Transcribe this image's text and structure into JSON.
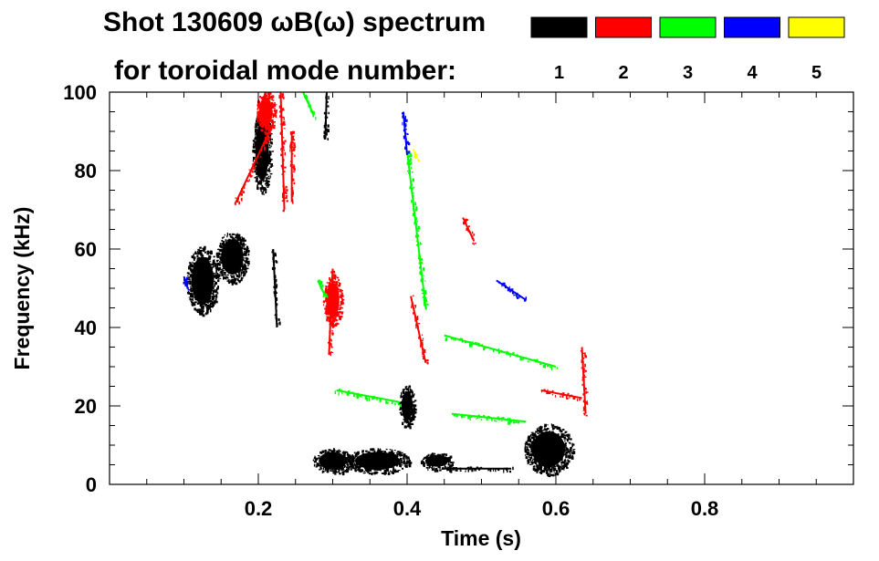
{
  "chart_data": {
    "type": "spectrogram",
    "title_line1": "Shot 130609 ωB(ω) spectrum",
    "title_line2": "for toroidal mode number:",
    "xlabel": "Time (s)",
    "ylabel": "Frequency (kHz)",
    "xlim": [
      0.0,
      1.0
    ],
    "ylim": [
      0,
      100
    ],
    "x_ticks": [
      "0.2",
      "0.4",
      "0.6",
      "0.8"
    ],
    "y_ticks": [
      "0",
      "20",
      "40",
      "60",
      "80",
      "100"
    ],
    "legend": [
      {
        "label": "1",
        "color": "#000000"
      },
      {
        "label": "2",
        "color": "#ff0000"
      },
      {
        "label": "3",
        "color": "#00ff00"
      },
      {
        "label": "4",
        "color": "#0000ff"
      },
      {
        "label": "5",
        "color": "#ffff00"
      }
    ],
    "features": [
      {
        "mode": "1",
        "kind": "blob",
        "t": 0.125,
        "f": 52,
        "dt": 0.02,
        "df": 8
      },
      {
        "mode": "1",
        "kind": "blob",
        "t": 0.165,
        "f": 58,
        "dt": 0.02,
        "df": 6
      },
      {
        "mode": "1",
        "kind": "blob",
        "t": 0.205,
        "f": 85,
        "dt": 0.012,
        "df": 10
      },
      {
        "mode": "1",
        "kind": "streak",
        "t0": 0.22,
        "f0": 60,
        "t1": 0.225,
        "f1": 40
      },
      {
        "mode": "1",
        "kind": "streak",
        "t0": 0.292,
        "f0": 100,
        "t1": 0.29,
        "f1": 88
      },
      {
        "mode": "1",
        "kind": "blob",
        "t": 0.3,
        "f": 6,
        "dt": 0.025,
        "df": 3
      },
      {
        "mode": "1",
        "kind": "blob",
        "t": 0.36,
        "f": 6,
        "dt": 0.04,
        "df": 3
      },
      {
        "mode": "1",
        "kind": "blob",
        "t": 0.4,
        "f": 20,
        "dt": 0.01,
        "df": 5
      },
      {
        "mode": "1",
        "kind": "blob",
        "t": 0.44,
        "f": 6,
        "dt": 0.02,
        "df": 2
      },
      {
        "mode": "1",
        "kind": "streak",
        "t0": 0.45,
        "f0": 4,
        "t1": 0.54,
        "f1": 4
      },
      {
        "mode": "1",
        "kind": "blob",
        "t": 0.59,
        "f": 9,
        "dt": 0.03,
        "df": 6
      },
      {
        "mode": "2",
        "kind": "streak",
        "t0": 0.17,
        "f0": 72,
        "t1": 0.215,
        "f1": 90
      },
      {
        "mode": "2",
        "kind": "blob",
        "t": 0.21,
        "f": 95,
        "dt": 0.012,
        "df": 5
      },
      {
        "mode": "2",
        "kind": "streak",
        "t0": 0.23,
        "f0": 100,
        "t1": 0.235,
        "f1": 70
      },
      {
        "mode": "2",
        "kind": "streak",
        "t0": 0.245,
        "f0": 90,
        "t1": 0.245,
        "f1": 72
      },
      {
        "mode": "2",
        "kind": "streak",
        "t0": 0.3,
        "f0": 55,
        "t1": 0.295,
        "f1": 33
      },
      {
        "mode": "2",
        "kind": "blob",
        "t": 0.3,
        "f": 47,
        "dt": 0.012,
        "df": 6
      },
      {
        "mode": "2",
        "kind": "streak",
        "t0": 0.405,
        "f0": 48,
        "t1": 0.425,
        "f1": 31
      },
      {
        "mode": "2",
        "kind": "streak",
        "t0": 0.475,
        "f0": 68,
        "t1": 0.49,
        "f1": 62
      },
      {
        "mode": "2",
        "kind": "streak",
        "t0": 0.58,
        "f0": 24,
        "t1": 0.635,
        "f1": 22
      },
      {
        "mode": "2",
        "kind": "streak",
        "t0": 0.635,
        "f0": 35,
        "t1": 0.64,
        "f1": 18
      },
      {
        "mode": "3",
        "kind": "streak",
        "t0": 0.26,
        "f0": 100,
        "t1": 0.275,
        "f1": 94
      },
      {
        "mode": "3",
        "kind": "streak",
        "t0": 0.4,
        "f0": 85,
        "t1": 0.425,
        "f1": 45
      },
      {
        "mode": "3",
        "kind": "streak",
        "t0": 0.305,
        "f0": 24,
        "t1": 0.39,
        "f1": 21
      },
      {
        "mode": "3",
        "kind": "streak",
        "t0": 0.45,
        "f0": 38,
        "t1": 0.6,
        "f1": 30
      },
      {
        "mode": "3",
        "kind": "streak",
        "t0": 0.46,
        "f0": 18,
        "t1": 0.56,
        "f1": 16
      },
      {
        "mode": "3",
        "kind": "streak",
        "t0": 0.28,
        "f0": 52,
        "t1": 0.29,
        "f1": 48
      },
      {
        "mode": "4",
        "kind": "streak",
        "t0": 0.395,
        "f0": 95,
        "t1": 0.4,
        "f1": 84
      },
      {
        "mode": "4",
        "kind": "streak",
        "t0": 0.1,
        "f0": 53,
        "t1": 0.105,
        "f1": 50
      },
      {
        "mode": "4",
        "kind": "streak",
        "t0": 0.52,
        "f0": 52,
        "t1": 0.56,
        "f1": 47
      },
      {
        "mode": "5",
        "kind": "streak",
        "t0": 0.41,
        "f0": 85,
        "t1": 0.412,
        "f1": 83
      }
    ]
  }
}
